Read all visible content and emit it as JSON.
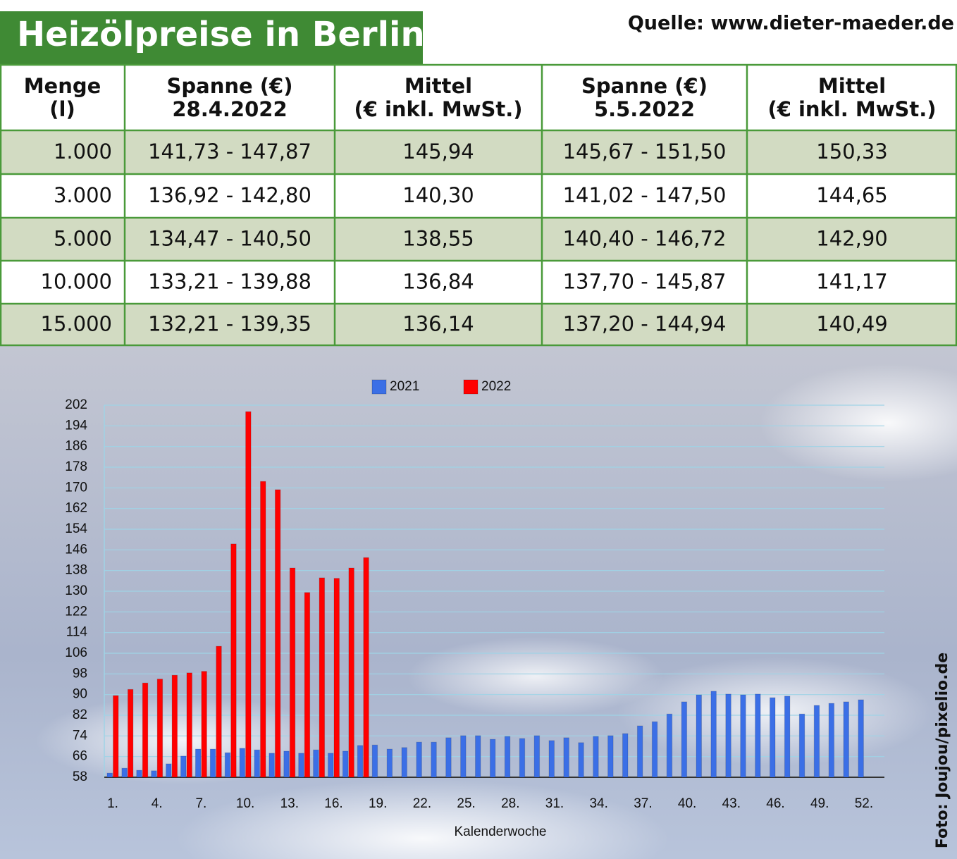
{
  "title": "Heizölpreise in Berlin",
  "source": "Quelle: www.dieter-maeder.de",
  "photo_credit": "Foto: Joujou/pixelio.de",
  "table": {
    "header": [
      [
        "Menge",
        "(l)"
      ],
      [
        "Spanne (€)",
        "28.4.2022"
      ],
      [
        "Mittel",
        "(€ inkl. MwSt.)"
      ],
      [
        "Spanne (€)",
        "5.5.2022"
      ],
      [
        "Mittel",
        "(€ inkl. MwSt.)"
      ]
    ],
    "rows": [
      [
        "1.000",
        "141,73 - 147,87",
        "145,94",
        "145,67 - 151,50",
        "150,33"
      ],
      [
        "3.000",
        "136,92 - 142,80",
        "140,30",
        "141,02 - 147,50",
        "144,65"
      ],
      [
        "5.000",
        "134,47 - 140,50",
        "138,55",
        "140,40 - 146,72",
        "142,90"
      ],
      [
        "10.000",
        "133,21 - 139,88",
        "136,84",
        "137,70 - 145,87",
        "141,17"
      ],
      [
        "15.000",
        "132,21 - 139,35",
        "136,14",
        "137,20 - 144,94",
        "140,49"
      ]
    ]
  },
  "chart_data": {
    "type": "bar",
    "x_label": "Kalenderwoche",
    "categories": [
      "1.",
      null,
      null,
      "4.",
      null,
      null,
      "7.",
      null,
      null,
      "10.",
      null,
      null,
      "13.",
      null,
      null,
      "16.",
      null,
      null,
      "19.",
      null,
      null,
      "22.",
      null,
      null,
      "25.",
      null,
      null,
      "28.",
      null,
      null,
      "31.",
      null,
      null,
      "34.",
      null,
      null,
      "37.",
      null,
      null,
      "40.",
      null,
      null,
      "43.",
      null,
      null,
      "46.",
      null,
      null,
      "49.",
      null,
      null,
      "52."
    ],
    "series": [
      {
        "name": "2021",
        "color": "#3b6fe6",
        "values": [
          59.6,
          61.5,
          60.7,
          60.5,
          63.2,
          66.2,
          68.9,
          68.9,
          67.5,
          69.2,
          68.6,
          67.3,
          68.1,
          67.3,
          68.6,
          67.3,
          68.1,
          70.3,
          70.5,
          68.9,
          69.5,
          71.6,
          71.6,
          73.3,
          74.1,
          74.1,
          72.7,
          73.8,
          73,
          74.1,
          72.2,
          73.3,
          71.4,
          73.8,
          74.1,
          74.9,
          77.9,
          79.5,
          82.5,
          87.2,
          89.9,
          91.3,
          90.2,
          89.9,
          90.2,
          88.8,
          89.4,
          82.5,
          85.8,
          86.6,
          87.2,
          88
        ]
      },
      {
        "name": "2022",
        "color": "#ff0000",
        "values": [
          89.6,
          92,
          94.5,
          96,
          97.5,
          98.4,
          99,
          108.7,
          148.3,
          199.5,
          172.5,
          169.3,
          139,
          129.5,
          135.2,
          135,
          139,
          143,
          null,
          null,
          null,
          null,
          null,
          null,
          null,
          null,
          null,
          null,
          null,
          null,
          null,
          null,
          null,
          null,
          null,
          null,
          null,
          null,
          null,
          null,
          null,
          null,
          null,
          null,
          null,
          null,
          null,
          null,
          null,
          null,
          null,
          null
        ]
      }
    ],
    "ylim": [
      58,
      202
    ],
    "yticks": [
      58,
      66,
      74,
      82,
      90,
      98,
      106,
      114,
      122,
      130,
      138,
      146,
      154,
      162,
      170,
      178,
      186,
      194,
      202
    ],
    "grid": true,
    "legend": "top"
  }
}
